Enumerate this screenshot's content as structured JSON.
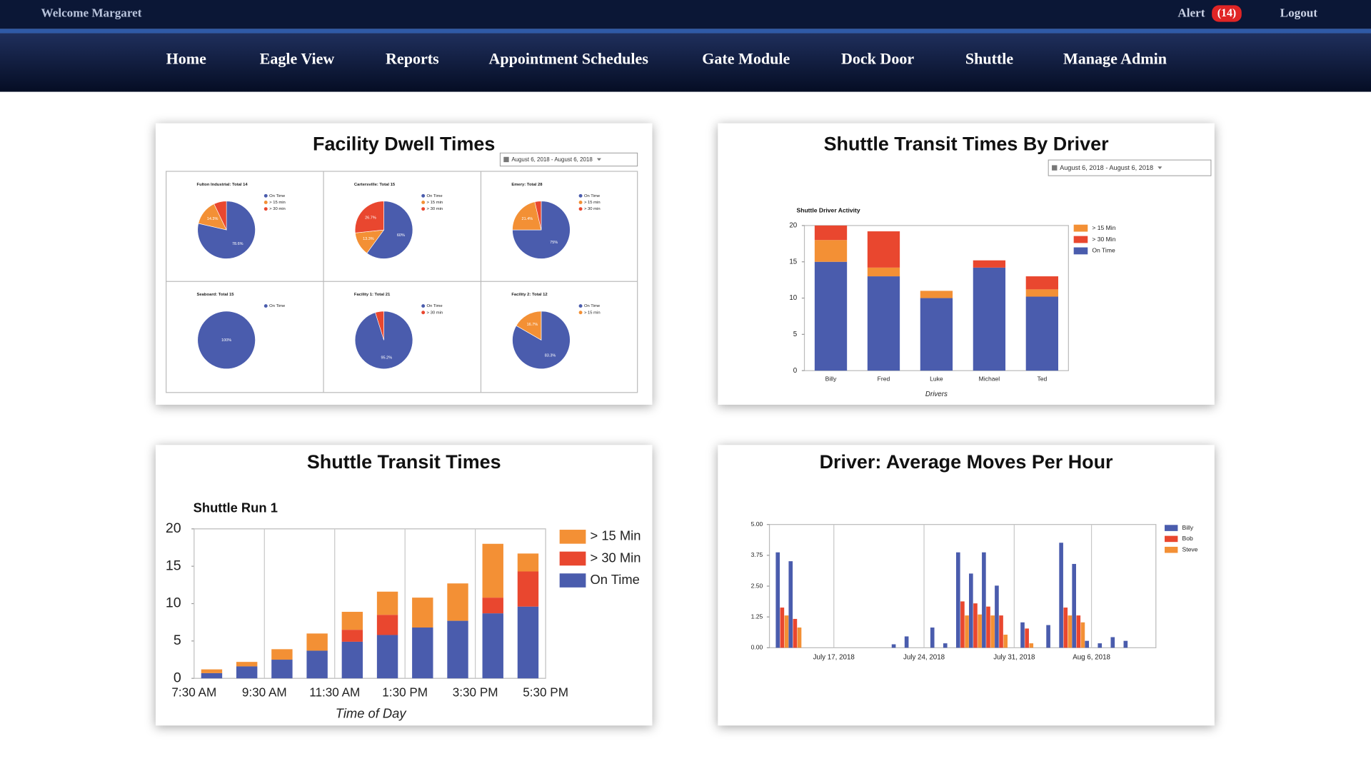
{
  "header": {
    "welcome": "Welcome Margaret",
    "alert": "Alert",
    "alert_count": "(14)",
    "logout": "Logout"
  },
  "nav": [
    "Home",
    "Eagle View",
    "Reports",
    "Appointment Schedules",
    "Gate Module",
    "Dock Door",
    "Shuttle",
    "Manage Admin"
  ],
  "chart_data": [
    {
      "type": "pie",
      "title": "Facility Dwell Times",
      "date_range": "August 6, 2018 - August 6, 2018",
      "pies": [
        {
          "title": "Fulton Industrial: Total 14",
          "labels": [
            "On Time",
            "> 15 min",
            "> 30 min"
          ],
          "values": [
            78.6,
            14.3,
            7.1
          ],
          "value_labels": [
            "78.6%",
            "14.3%",
            null
          ],
          "colors": [
            "#4a5cad",
            "#f39035",
            "#e9472f"
          ]
        },
        {
          "title": "Cartersville: Total 15",
          "labels": [
            "On Time",
            "> 15 min",
            "> 30 min"
          ],
          "values": [
            60,
            13.3,
            26.7
          ],
          "value_labels": [
            "60%",
            "13.3%",
            "26.7%"
          ],
          "colors": [
            "#4a5cad",
            "#f39035",
            "#e9472f"
          ]
        },
        {
          "title": "Emery: Total 28",
          "labels": [
            "On Time",
            "> 15 min",
            "> 30 min"
          ],
          "values": [
            75,
            21.4,
            3.6
          ],
          "value_labels": [
            "75%",
            "21.4%",
            null
          ],
          "colors": [
            "#4a5cad",
            "#f39035",
            "#e9472f"
          ]
        },
        {
          "title": "Seaboard: Total 15",
          "labels": [
            "On Time"
          ],
          "values": [
            100
          ],
          "value_labels": [
            "100%"
          ],
          "colors": [
            "#4a5cad"
          ]
        },
        {
          "title": "Facility 1: Total 21",
          "labels": [
            "On Time",
            "> 30 min"
          ],
          "values": [
            95.2,
            4.8
          ],
          "value_labels": [
            "95.2%",
            null
          ],
          "colors": [
            "#4a5cad",
            "#e9472f"
          ]
        },
        {
          "title": "Facility 2: Total 12",
          "labels": [
            "On Time",
            "> 15 min"
          ],
          "values": [
            83.3,
            16.7
          ],
          "value_labels": [
            "83.3%",
            "16.7%"
          ],
          "colors": [
            "#4a5cad",
            "#f39035"
          ]
        }
      ]
    },
    {
      "type": "stacked_bar",
      "title": "Shuttle Transit Times By Driver",
      "date_range": "August 6, 2018 - August 6, 2018",
      "subtitle": "Shuttle Driver Activity",
      "xlabel": "Drivers",
      "categories": [
        "Billy",
        "Fred",
        "Luke",
        "Michael",
        "Ted"
      ],
      "series": [
        {
          "name": "On Time",
          "color": "#4a5cad",
          "values": [
            15,
            13,
            10,
            14.2,
            10.2
          ]
        },
        {
          "name": "> 15 Min",
          "color": "#f39035",
          "values": [
            3,
            1.2,
            1,
            0,
            1
          ]
        },
        {
          "name": "> 30 Min",
          "color": "#e9472f",
          "values": [
            2,
            5,
            0,
            1,
            1.8
          ]
        }
      ],
      "ylim": [
        0,
        20
      ],
      "yticks": [
        0,
        5,
        10,
        15,
        20
      ]
    },
    {
      "type": "stacked_bar",
      "title": "Shuttle Transit Times",
      "subtitle": "Shuttle Run 1",
      "xlabel": "Time of Day",
      "x": [
        0.5,
        1.5,
        2.5,
        3.5,
        4.5,
        5.5,
        6.5,
        7.5,
        8.5,
        9.5
      ],
      "xlim": [
        0,
        10
      ],
      "xticks": [
        {
          "value": 0,
          "label": "7:30 AM"
        },
        {
          "value": 2,
          "label": "9:30 AM"
        },
        {
          "value": 4,
          "label": "11:30 AM"
        },
        {
          "value": 6,
          "label": "1:30 PM"
        },
        {
          "value": 8,
          "label": "3:30 PM"
        },
        {
          "value": 10,
          "label": "5:30 PM"
        }
      ],
      "series": [
        {
          "name": "On Time",
          "color": "#4a5cad",
          "values": [
            0.7,
            1.6,
            2.5,
            3.7,
            4.9,
            5.8,
            6.8,
            7.7,
            8.7,
            9.6
          ]
        },
        {
          "name": "> 30 Min",
          "color": "#e9472f",
          "values": [
            0,
            0,
            0,
            0,
            1.6,
            2.7,
            0,
            0,
            2.1,
            4.7
          ]
        },
        {
          "name": "> 15 Min",
          "color": "#f39035",
          "values": [
            0.5,
            0.6,
            1.4,
            2.3,
            2.4,
            3.1,
            4.0,
            5.0,
            7.2,
            2.4
          ]
        }
      ],
      "ylim": [
        0,
        20
      ],
      "yticks": [
        0,
        5,
        10,
        15,
        20
      ]
    },
    {
      "type": "grouped_bar",
      "title": "Driver: Average Moves Per Hour",
      "x": [
        "2018-07-13",
        "2018-07-14",
        "2018-07-22",
        "2018-07-23",
        "2018-07-25",
        "2018-07-26",
        "2018-07-27",
        "2018-07-28",
        "2018-07-29",
        "2018-07-30",
        "2018-08-01",
        "2018-08-03",
        "2018-08-04",
        "2018-08-05",
        "2018-08-06",
        "2018-08-07",
        "2018-08-08",
        "2018-08-09"
      ],
      "xlim": [
        "2018-07-12",
        "2018-08-11"
      ],
      "xticks": [
        {
          "value": "2018-07-17",
          "label": "July 17, 2018"
        },
        {
          "value": "2018-07-24",
          "label": "July 24, 2018"
        },
        {
          "value": "2018-07-31",
          "label": "July 31, 2018"
        },
        {
          "value": "2018-08-06",
          "label": "Aug 6, 2018"
        }
      ],
      "series": [
        {
          "name": "Billy",
          "color": "#4a5cad",
          "values": [
            3.87,
            3.51,
            0.14,
            0.46,
            0.82,
            0.18,
            3.87,
            3.01,
            3.87,
            2.52,
            1.03,
            0.92,
            4.26,
            3.4,
            0.28,
            0.18,
            0.43,
            0.28
          ]
        },
        {
          "name": "Bob",
          "color": "#e9472f",
          "values": [
            1.63,
            1.17,
            0,
            0,
            0,
            0,
            1.88,
            1.8,
            1.67,
            1.31,
            0.78,
            0,
            1.63,
            1.31,
            0,
            0,
            0,
            0
          ]
        },
        {
          "name": "Steve",
          "color": "#f39035",
          "values": [
            1.31,
            0.82,
            0,
            0,
            0,
            0,
            1.31,
            1.35,
            1.31,
            0.53,
            0.18,
            0,
            1.31,
            1.03,
            0,
            0,
            0,
            0
          ]
        }
      ],
      "ylim": [
        0,
        5
      ],
      "yticks": [
        {
          "value": 0,
          "label": "0.00"
        },
        1.25,
        {
          "value": 2.5,
          "label": "2.50"
        },
        3.75,
        {
          "value": 5,
          "label": "5.00"
        }
      ]
    }
  ]
}
